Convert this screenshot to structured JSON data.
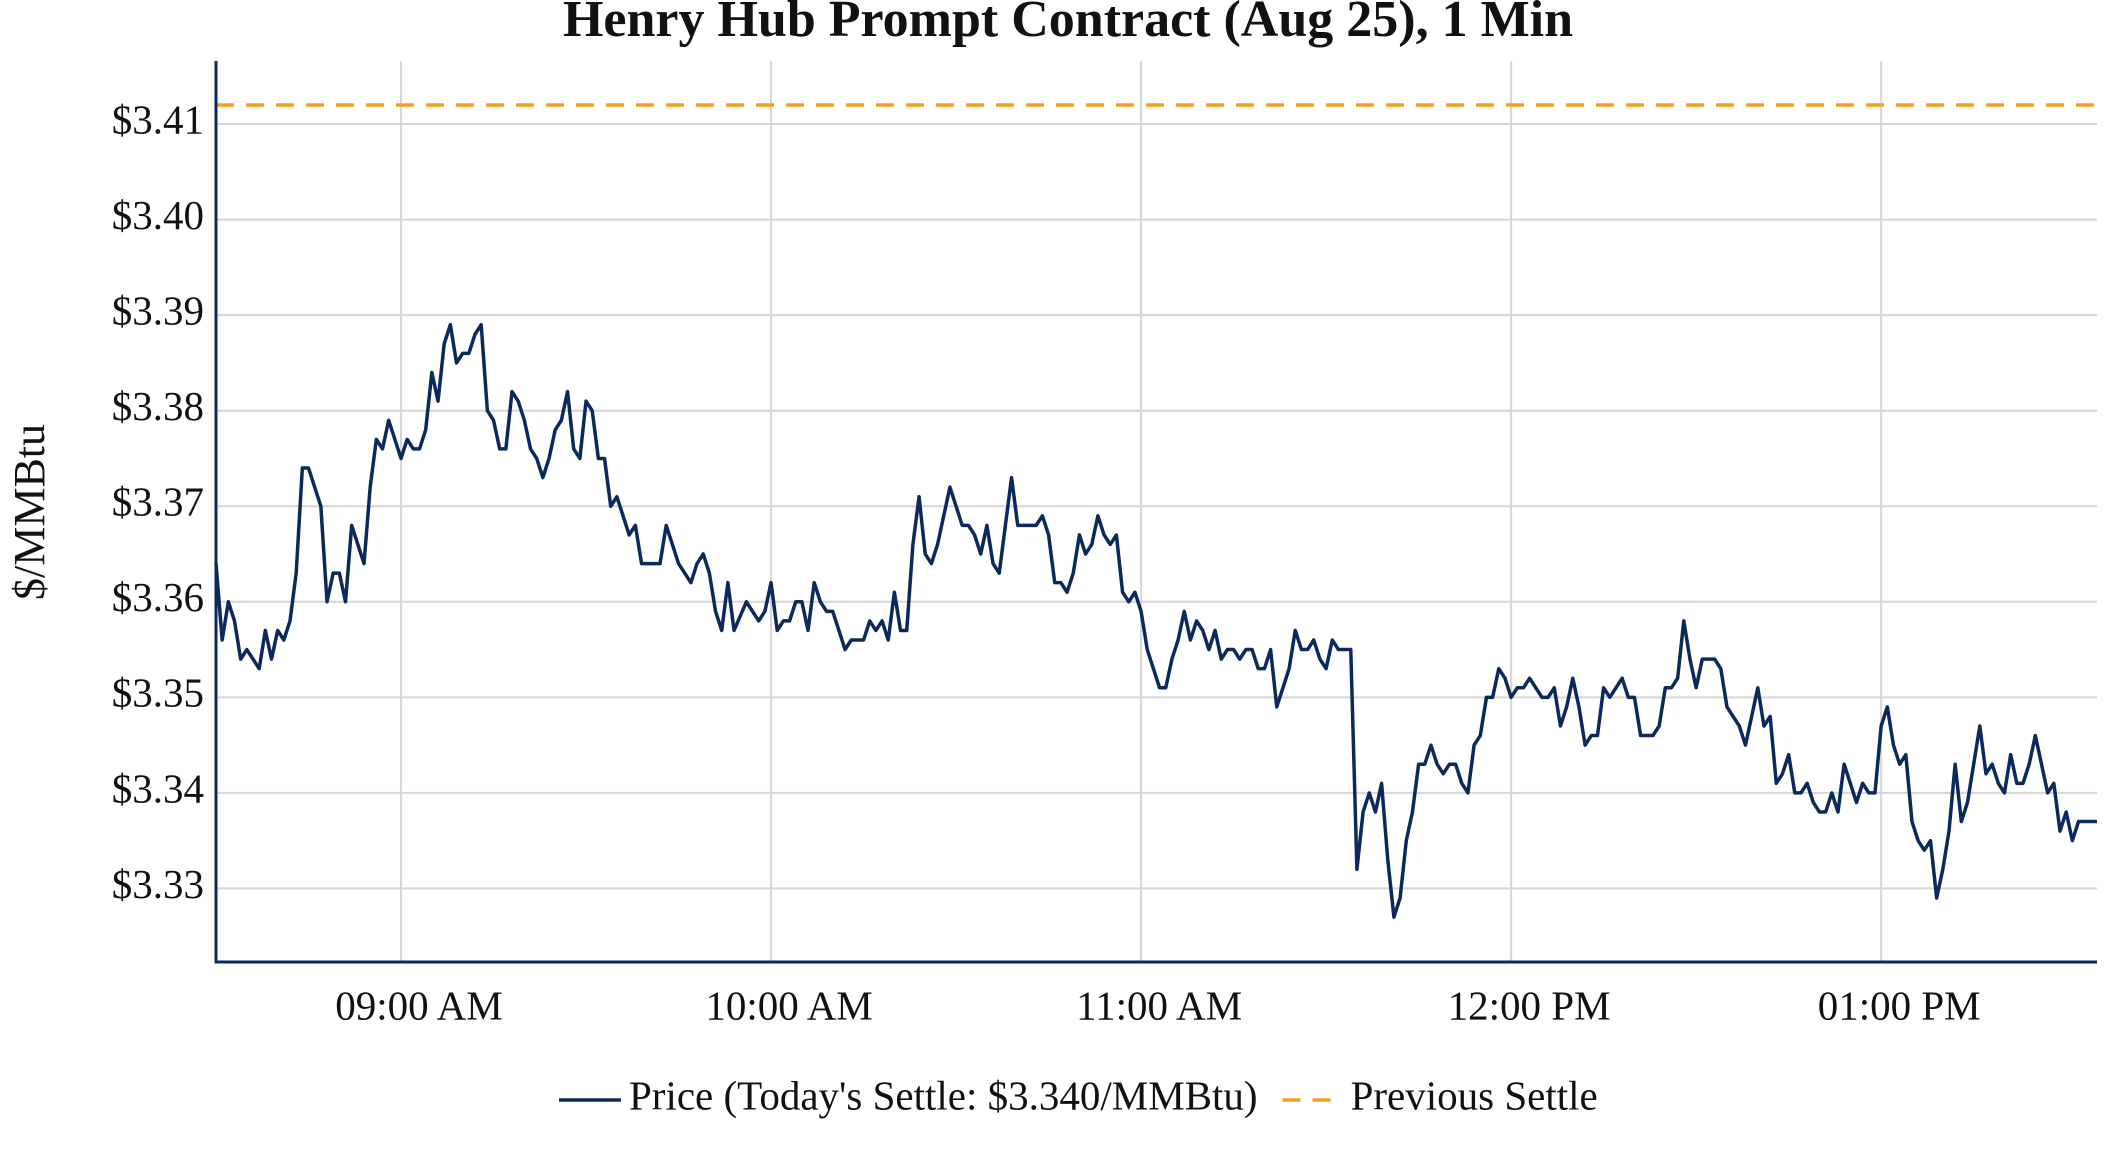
{
  "chart_data": {
    "type": "line",
    "title": "Henry Hub Prompt Contract (Aug 25), 1 Min",
    "y_label": "$/MMBtu",
    "x": [
      "08:30 AM",
      "08:31 AM",
      "08:32 AM",
      "08:33 AM",
      "08:34 AM",
      "08:35 AM",
      "08:37 AM",
      "08:38 AM",
      "08:39 AM",
      "08:40 AM",
      "08:41 AM",
      "08:42 AM",
      "08:43 AM",
      "08:44 AM",
      "08:45 AM",
      "08:47 AM",
      "08:48 AM",
      "08:49 AM",
      "08:50 AM",
      "08:51 AM",
      "08:52 AM",
      "08:54 AM",
      "08:55 AM",
      "08:56 AM",
      "08:57 AM",
      "08:58 AM",
      "09:00 AM",
      "09:01 AM",
      "09:02 AM",
      "09:03 AM",
      "09:04 AM",
      "09:05 AM",
      "09:06 AM",
      "09:07 AM",
      "09:08 AM",
      "09:09 AM",
      "09:10 AM",
      "09:11 AM",
      "09:12 AM",
      "09:13 AM",
      "09:14 AM",
      "09:15 AM",
      "09:16 AM",
      "09:17 AM",
      "09:18 AM",
      "09:19 AM",
      "09:20 AM",
      "09:21 AM",
      "09:22 AM",
      "09:23 AM",
      "09:24 AM",
      "09:25 AM",
      "09:26 AM",
      "09:27 AM",
      "09:28 AM",
      "09:29 AM",
      "09:30 AM",
      "09:31 AM",
      "09:32 AM",
      "09:33 AM",
      "09:34 AM",
      "09:35 AM",
      "09:37 AM",
      "09:38 AM",
      "09:39 AM",
      "09:42 AM",
      "09:43 AM",
      "09:45 AM",
      "09:47 AM",
      "09:48 AM",
      "09:49 AM",
      "09:50 AM",
      "09:51 AM",
      "09:52 AM",
      "09:53 AM",
      "09:54 AM",
      "09:56 AM",
      "09:58 AM",
      "09:59 AM",
      "10:00 AM",
      "10:01 AM",
      "10:02 AM",
      "10:03 AM",
      "10:04 AM",
      "10:05 AM",
      "10:06 AM",
      "10:07 AM",
      "10:08 AM",
      "10:09 AM",
      "10:10 AM",
      "10:11 AM",
      "10:12 AM",
      "10:13 AM",
      "10:15 AM",
      "10:16 AM",
      "10:17 AM",
      "10:18 AM",
      "10:19 AM",
      "10:20 AM",
      "10:21 AM",
      "10:22 AM",
      "10:23 AM",
      "10:24 AM",
      "10:25 AM",
      "10:26 AM",
      "10:27 AM",
      "10:28 AM",
      "10:29 AM",
      "10:30 AM",
      "10:31 AM",
      "10:32 AM",
      "10:33 AM",
      "10:34 AM",
      "10:35 AM",
      "10:36 AM",
      "10:37 AM",
      "10:38 AM",
      "10:39 AM",
      "10:40 AM",
      "10:41 AM",
      "10:43 AM",
      "10:44 AM",
      "10:45 AM",
      "10:46 AM",
      "10:47 AM",
      "10:48 AM",
      "10:49 AM",
      "10:50 AM",
      "10:51 AM",
      "10:52 AM",
      "10:53 AM",
      "10:54 AM",
      "10:55 AM",
      "10:56 AM",
      "10:57 AM",
      "10:58 AM",
      "10:59 AM",
      "11:00 AM",
      "11:01 AM",
      "11:02 AM",
      "11:03 AM",
      "11:04 AM",
      "11:05 AM",
      "11:06 AM",
      "11:07 AM",
      "11:08 AM",
      "11:09 AM",
      "11:10 AM",
      "11:11 AM",
      "11:12 AM",
      "11:13 AM",
      "11:14 AM",
      "11:15 AM",
      "11:16 AM",
      "11:17 AM",
      "11:18 AM",
      "11:19 AM",
      "11:20 AM",
      "11:21 AM",
      "11:22 AM",
      "11:23 AM",
      "11:24 AM",
      "11:25 AM",
      "11:26 AM",
      "11:27 AM",
      "11:28 AM",
      "11:29 AM",
      "11:30 AM",
      "11:31 AM",
      "11:32 AM",
      "11:34 AM",
      "11:35 AM",
      "11:36 AM",
      "11:37 AM",
      "11:38 AM",
      "11:39 AM",
      "11:40 AM",
      "11:41 AM",
      "11:42 AM",
      "11:43 AM",
      "11:44 AM",
      "11:45 AM",
      "11:46 AM",
      "11:47 AM",
      "11:48 AM",
      "11:49 AM",
      "11:50 AM",
      "11:51 AM",
      "11:52 AM",
      "11:53 AM",
      "11:54 AM",
      "11:55 AM",
      "11:56 AM",
      "11:57 AM",
      "11:58 AM",
      "11:59 AM",
      "12:00 PM",
      "12:01 PM",
      "12:02 PM",
      "12:03 PM",
      "12:04 PM",
      "12:05 PM",
      "12:06 PM",
      "12:07 PM",
      "12:08 PM",
      "12:09 PM",
      "12:10 PM",
      "12:11 PM",
      "12:12 PM",
      "12:13 PM",
      "12:14 PM",
      "12:15 PM",
      "12:16 PM",
      "12:17 PM",
      "12:18 PM",
      "12:19 PM",
      "12:20 PM",
      "12:21 PM",
      "12:23 PM",
      "12:24 PM",
      "12:25 PM",
      "12:26 PM",
      "12:27 PM",
      "12:28 PM",
      "12:29 PM",
      "12:30 PM",
      "12:31 PM",
      "12:33 PM",
      "12:34 PM",
      "12:35 PM",
      "12:37 PM",
      "12:38 PM",
      "12:39 PM",
      "12:40 PM",
      "12:41 PM",
      "12:42 PM",
      "12:43 PM",
      "12:44 PM",
      "12:45 PM",
      "12:46 PM",
      "12:47 PM",
      "12:48 PM",
      "12:49 PM",
      "12:50 PM",
      "12:51 PM",
      "12:52 PM",
      "12:53 PM",
      "12:54 PM",
      "12:55 PM",
      "12:56 PM",
      "12:57 PM",
      "12:58 PM",
      "12:59 PM",
      "01:00 PM",
      "01:01 PM",
      "01:02 PM",
      "01:03 PM",
      "01:04 PM",
      "01:05 PM",
      "01:06 PM",
      "01:07 PM",
      "01:08 PM",
      "01:09 PM",
      "01:10 PM",
      "01:11 PM",
      "01:12 PM",
      "01:13 PM",
      "01:14 PM",
      "01:15 PM",
      "01:16 PM",
      "01:17 PM",
      "01:18 PM",
      "01:19 PM",
      "01:20 PM",
      "01:21 PM",
      "01:22 PM",
      "01:23 PM",
      "01:24 PM",
      "01:25 PM",
      "01:26 PM",
      "01:27 PM",
      "01:28 PM",
      "01:29 PM",
      "01:30 PM",
      "01:31 PM",
      "01:32 PM",
      "01:34 PM",
      "01:35 PM"
    ],
    "series": [
      {
        "name": "Price (Today's Settle: $3.340/MMBtu)",
        "color": "#0b2a5b",
        "values": [
          3.364,
          3.356,
          3.36,
          3.358,
          3.354,
          3.355,
          3.353,
          3.357,
          3.354,
          3.357,
          3.356,
          3.358,
          3.363,
          3.374,
          3.374,
          3.37,
          3.36,
          3.363,
          3.363,
          3.36,
          3.368,
          3.364,
          3.372,
          3.377,
          3.376,
          3.379,
          3.375,
          3.377,
          3.376,
          3.376,
          3.378,
          3.384,
          3.381,
          3.387,
          3.389,
          3.385,
          3.386,
          3.386,
          3.388,
          3.389,
          3.38,
          3.379,
          3.376,
          3.376,
          3.382,
          3.381,
          3.379,
          3.376,
          3.375,
          3.373,
          3.375,
          3.378,
          3.379,
          3.382,
          3.376,
          3.375,
          3.381,
          3.38,
          3.375,
          3.375,
          3.37,
          3.371,
          3.367,
          3.368,
          3.364,
          3.364,
          3.368,
          3.364,
          3.362,
          3.364,
          3.365,
          3.363,
          3.359,
          3.357,
          3.362,
          3.357,
          3.36,
          3.358,
          3.359,
          3.362,
          3.357,
          3.358,
          3.358,
          3.36,
          3.36,
          3.357,
          3.362,
          3.36,
          3.359,
          3.359,
          3.357,
          3.355,
          3.356,
          3.356,
          3.358,
          3.357,
          3.358,
          3.356,
          3.361,
          3.357,
          3.357,
          3.366,
          3.371,
          3.365,
          3.364,
          3.366,
          3.369,
          3.372,
          3.37,
          3.368,
          3.368,
          3.367,
          3.365,
          3.368,
          3.364,
          3.363,
          3.368,
          3.373,
          3.368,
          3.368,
          3.368,
          3.369,
          3.367,
          3.362,
          3.362,
          3.361,
          3.363,
          3.367,
          3.365,
          3.366,
          3.369,
          3.367,
          3.366,
          3.367,
          3.361,
          3.36,
          3.361,
          3.359,
          3.355,
          3.353,
          3.351,
          3.351,
          3.354,
          3.356,
          3.359,
          3.356,
          3.358,
          3.357,
          3.355,
          3.357,
          3.354,
          3.355,
          3.355,
          3.354,
          3.355,
          3.355,
          3.353,
          3.353,
          3.355,
          3.349,
          3.351,
          3.353,
          3.357,
          3.355,
          3.355,
          3.356,
          3.354,
          3.353,
          3.356,
          3.355,
          3.355,
          3.332,
          3.338,
          3.34,
          3.338,
          3.341,
          3.333,
          3.327,
          3.329,
          3.335,
          3.338,
          3.343,
          3.343,
          3.345,
          3.343,
          3.342,
          3.343,
          3.343,
          3.341,
          3.34,
          3.345,
          3.346,
          3.35,
          3.35,
          3.353,
          3.352,
          3.35,
          3.351,
          3.351,
          3.352,
          3.351,
          3.35,
          3.35,
          3.351,
          3.347,
          3.349,
          3.352,
          3.349,
          3.345,
          3.346,
          3.346,
          3.351,
          3.35,
          3.351,
          3.352,
          3.35,
          3.35,
          3.346,
          3.346,
          3.347,
          3.351,
          3.351,
          3.352,
          3.358,
          3.354,
          3.351,
          3.354,
          3.354,
          3.353,
          3.349,
          3.347,
          3.345,
          3.348,
          3.351,
          3.347,
          3.348,
          3.341,
          3.342,
          3.344,
          3.34,
          3.34,
          3.341,
          3.339,
          3.338,
          3.338,
          3.34,
          3.338,
          3.343,
          3.341,
          3.339,
          3.341,
          3.34,
          3.34,
          3.347,
          3.349,
          3.345,
          3.343,
          3.344,
          3.337,
          3.335,
          3.334,
          3.335,
          3.329,
          3.332,
          3.336,
          3.343,
          3.337,
          3.339,
          3.343,
          3.347,
          3.342,
          3.343,
          3.341,
          3.34,
          3.344,
          3.341,
          3.341,
          3.343,
          3.346,
          3.343,
          3.34,
          3.341,
          3.336,
          3.338,
          3.335,
          3.337,
          3.337,
          3.337
        ]
      }
    ],
    "reference_lines": [
      {
        "name": "Previous Settle",
        "value": 3.412,
        "color": "#f5a01a"
      }
    ],
    "xlim": [
      "08:30 AM",
      "01:35 PM"
    ],
    "xticks": [
      "09:00 AM",
      "10:00 AM",
      "11:00 AM",
      "12:00 PM",
      "01:00 PM"
    ],
    "ylim": [
      3.3223,
      3.4166
    ],
    "yticks": [
      {
        "value": 3.33,
        "label": "$3.33"
      },
      {
        "value": 3.34,
        "label": "$3.34"
      },
      {
        "value": 3.35,
        "label": "$3.35"
      },
      {
        "value": 3.36,
        "label": "$3.36"
      },
      {
        "value": 3.37,
        "label": "$3.37"
      },
      {
        "value": 3.38,
        "label": "$3.38"
      },
      {
        "value": 3.39,
        "label": "$3.39"
      },
      {
        "value": 3.4,
        "label": "$3.40"
      },
      {
        "value": 3.41,
        "label": "$3.41"
      }
    ],
    "grid": true,
    "legend": "bottom"
  }
}
